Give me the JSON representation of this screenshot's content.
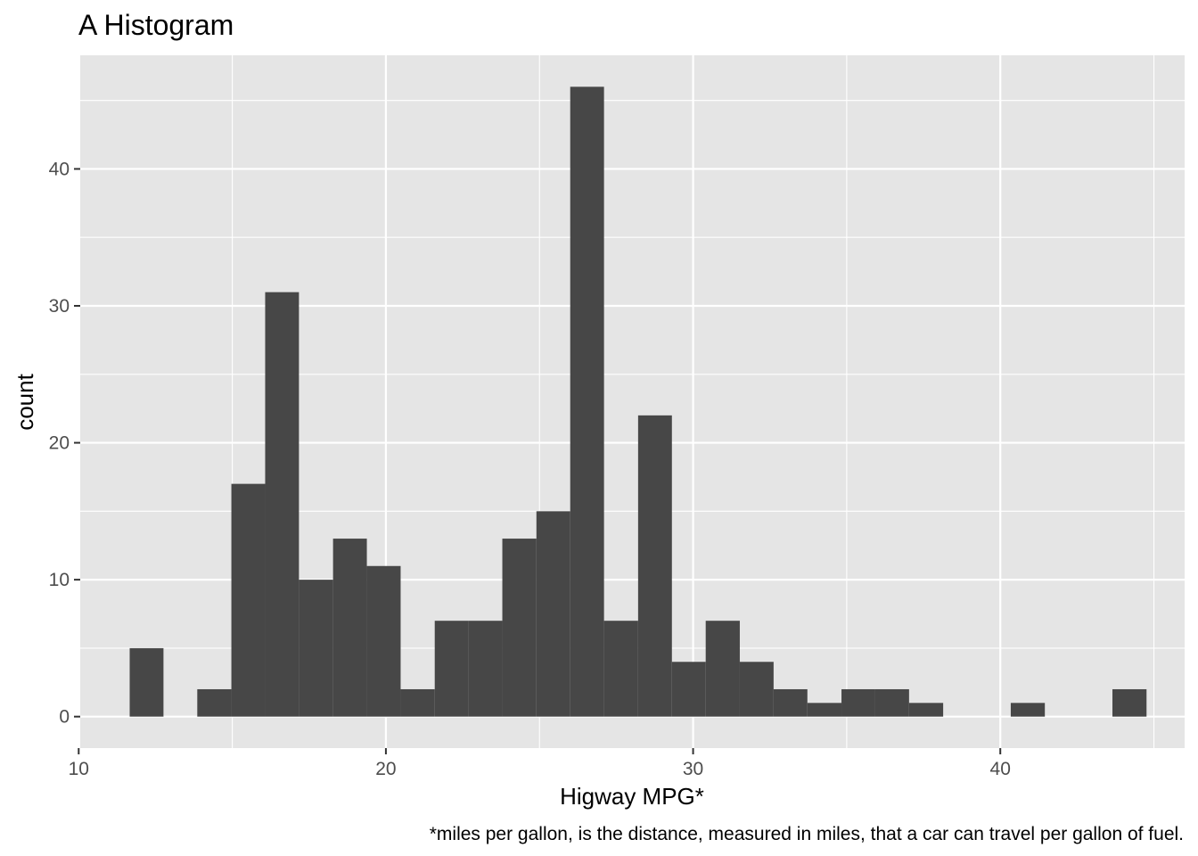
{
  "chart_data": {
    "type": "bar",
    "title": "A Histogram",
    "xlabel": "Higway MPG*",
    "ylabel": "count",
    "caption": "*miles per gallon, is the distance, measured in miles, that a car can travel per gallon of fuel.",
    "xlim": [
      10.05,
      46.0
    ],
    "ylim": [
      -2.3,
      48.3
    ],
    "x_ticks": [
      10,
      20,
      30,
      40
    ],
    "y_ticks": [
      0,
      10,
      20,
      30,
      40
    ],
    "grid": true,
    "bin_width": 1.103,
    "bins": [
      {
        "x0": 11.66,
        "x1": 12.76,
        "count": 5
      },
      {
        "x0": 12.76,
        "x1": 13.86,
        "count": 0
      },
      {
        "x0": 13.86,
        "x1": 14.97,
        "count": 2
      },
      {
        "x0": 14.97,
        "x1": 16.07,
        "count": 17
      },
      {
        "x0": 16.07,
        "x1": 17.17,
        "count": 31
      },
      {
        "x0": 17.17,
        "x1": 18.28,
        "count": 10
      },
      {
        "x0": 18.28,
        "x1": 19.38,
        "count": 13
      },
      {
        "x0": 19.38,
        "x1": 20.48,
        "count": 11
      },
      {
        "x0": 20.48,
        "x1": 21.59,
        "count": 2
      },
      {
        "x0": 21.59,
        "x1": 22.69,
        "count": 7
      },
      {
        "x0": 22.69,
        "x1": 23.79,
        "count": 7
      },
      {
        "x0": 23.79,
        "x1": 24.9,
        "count": 13
      },
      {
        "x0": 24.9,
        "x1": 26.0,
        "count": 15
      },
      {
        "x0": 26.0,
        "x1": 27.1,
        "count": 46
      },
      {
        "x0": 27.1,
        "x1": 28.21,
        "count": 7
      },
      {
        "x0": 28.21,
        "x1": 29.31,
        "count": 22
      },
      {
        "x0": 29.31,
        "x1": 30.41,
        "count": 4
      },
      {
        "x0": 30.41,
        "x1": 31.52,
        "count": 7
      },
      {
        "x0": 31.52,
        "x1": 32.62,
        "count": 4
      },
      {
        "x0": 32.62,
        "x1": 33.72,
        "count": 2
      },
      {
        "x0": 33.72,
        "x1": 34.83,
        "count": 1
      },
      {
        "x0": 34.83,
        "x1": 35.93,
        "count": 2
      },
      {
        "x0": 35.93,
        "x1": 37.03,
        "count": 2
      },
      {
        "x0": 37.03,
        "x1": 38.14,
        "count": 1
      },
      {
        "x0": 38.14,
        "x1": 39.24,
        "count": 0
      },
      {
        "x0": 39.24,
        "x1": 40.34,
        "count": 0
      },
      {
        "x0": 40.34,
        "x1": 41.45,
        "count": 1
      },
      {
        "x0": 41.45,
        "x1": 42.55,
        "count": 0
      },
      {
        "x0": 42.55,
        "x1": 43.65,
        "count": 0
      },
      {
        "x0": 43.65,
        "x1": 44.76,
        "count": 2
      }
    ],
    "colors": {
      "panel": "#e5e5e5",
      "grid": "#ffffff",
      "bar": "#474747",
      "tick": "#333333",
      "tick_label": "#4d4d4d"
    }
  }
}
